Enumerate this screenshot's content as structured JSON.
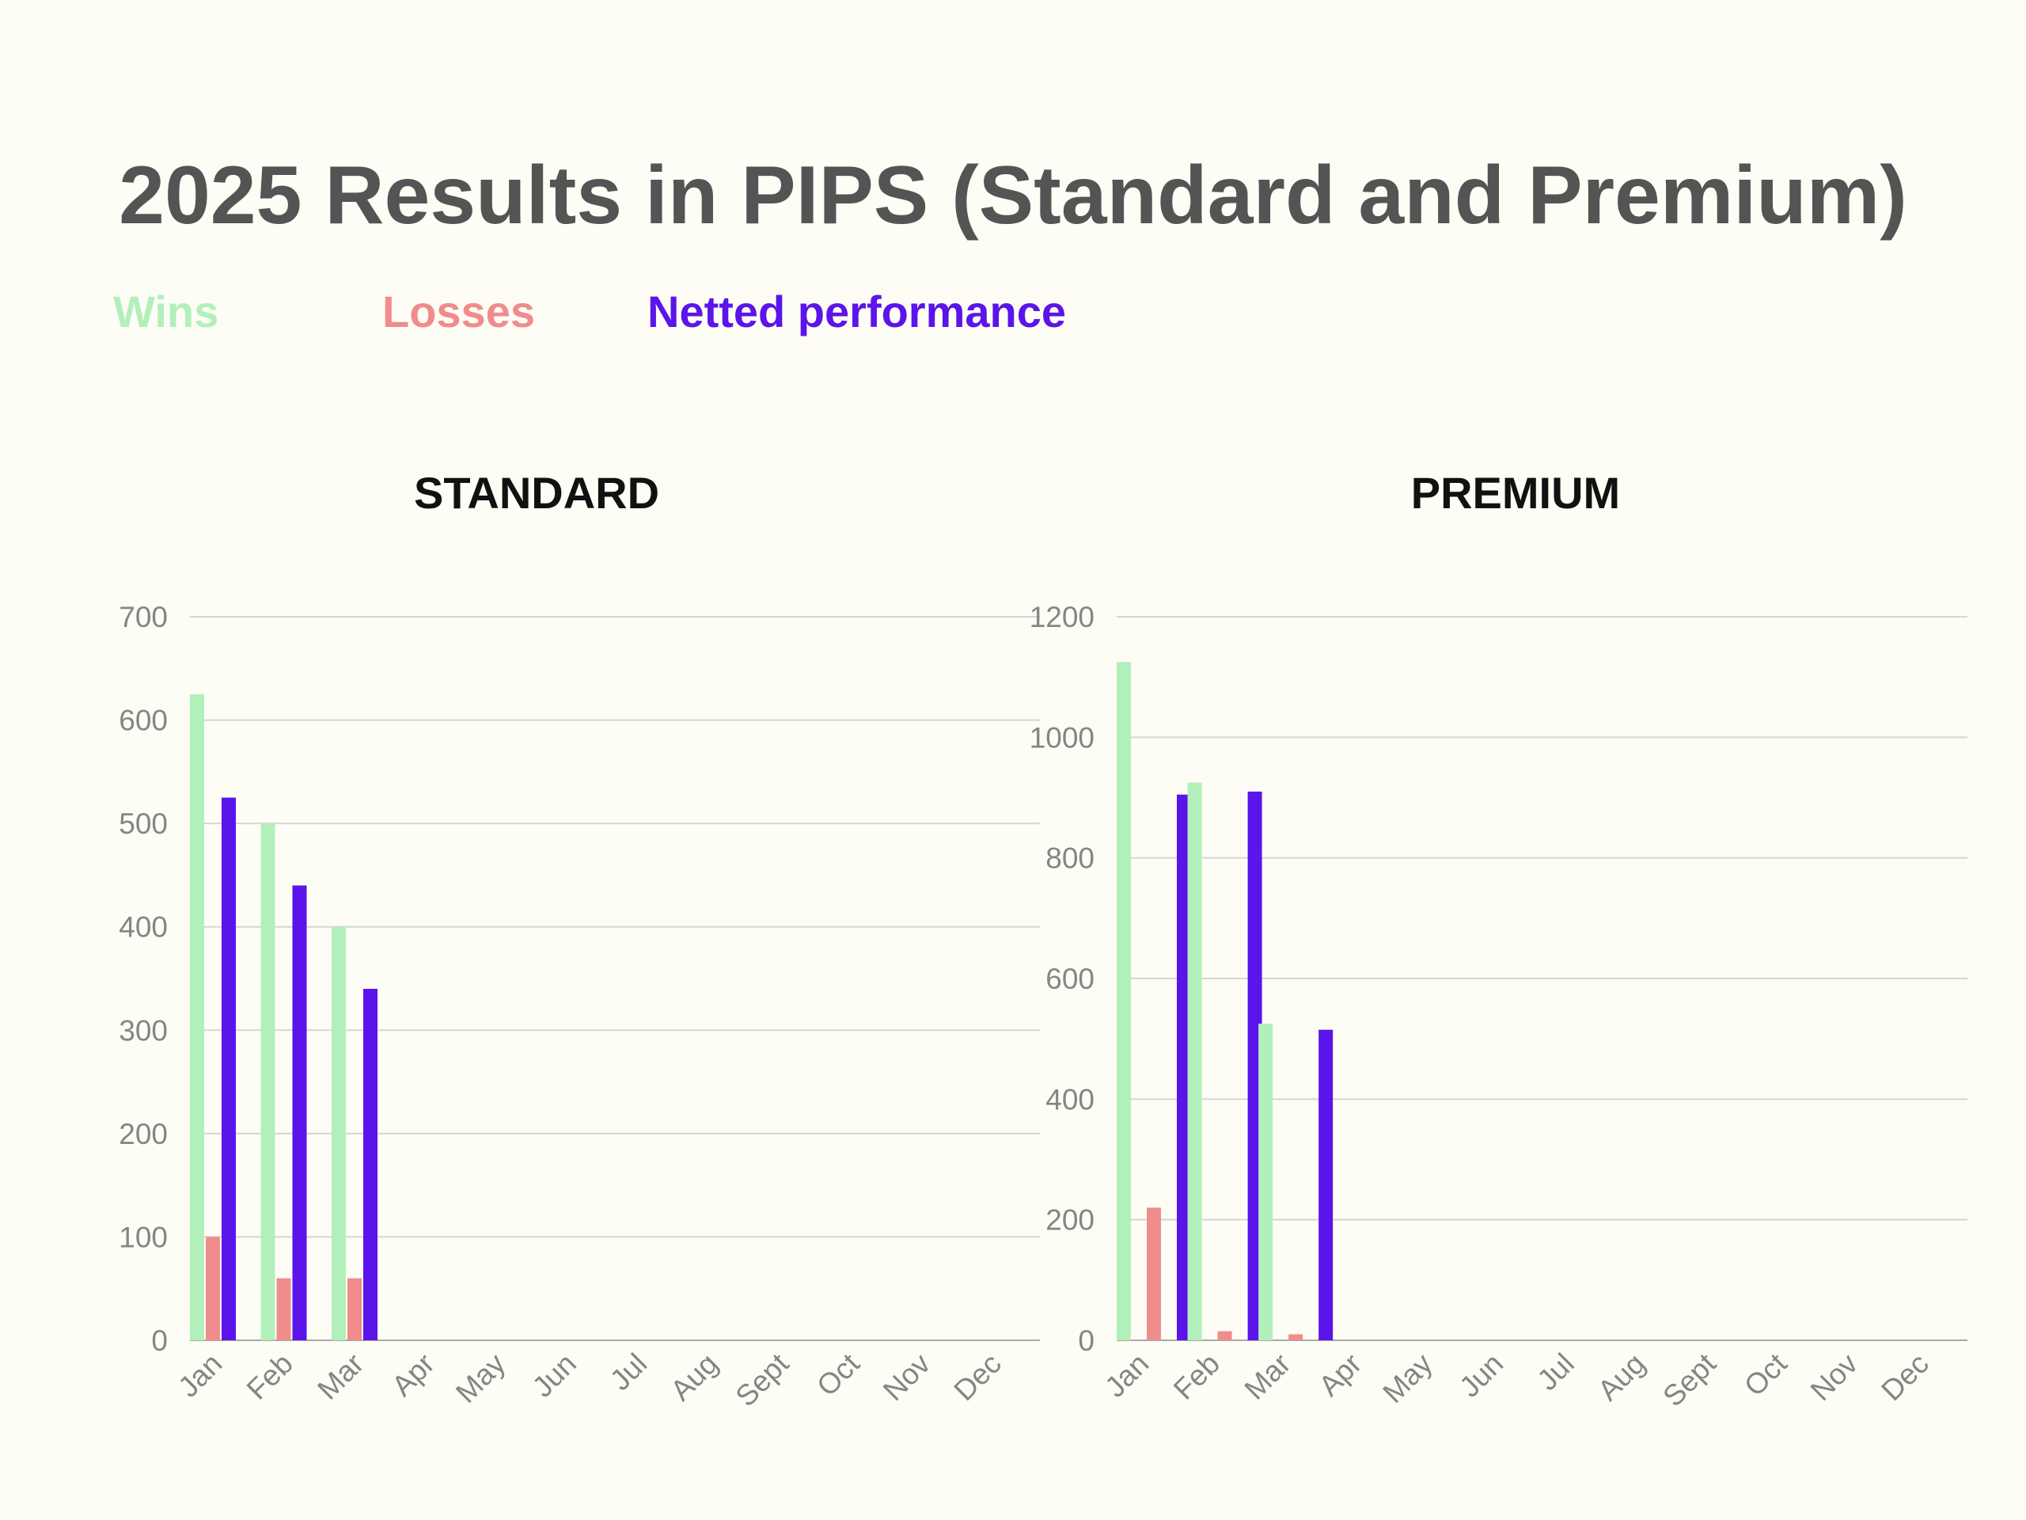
{
  "title": "2025 Results in PIPS (Standard and Premium)",
  "legend": [
    {
      "label": "Wins",
      "color": "#b2f0bb"
    },
    {
      "label": "Losses",
      "color": "#f08c8c"
    },
    {
      "label": "Netted performance",
      "color": "#5b14ea"
    }
  ],
  "chart_data": [
    {
      "type": "bar",
      "title": "STANDARD",
      "categories": [
        "Jan",
        "Feb",
        "Mar",
        "Apr",
        "May",
        "Jun",
        "Jul",
        "Aug",
        "Sept",
        "Oct",
        "Nov",
        "Dec"
      ],
      "series": [
        {
          "name": "Wins",
          "values": [
            625,
            500,
            400,
            0,
            0,
            0,
            0,
            0,
            0,
            0,
            0,
            0
          ]
        },
        {
          "name": "Losses",
          "values": [
            100,
            60,
            60,
            0,
            0,
            0,
            0,
            0,
            0,
            0,
            0,
            0
          ]
        },
        {
          "name": "Netted performance",
          "values": [
            525,
            440,
            340,
            0,
            0,
            0,
            0,
            0,
            0,
            0,
            0,
            0
          ]
        }
      ],
      "ylim": [
        0,
        700
      ],
      "yticks": [
        0,
        100,
        200,
        300,
        400,
        500,
        600,
        700
      ],
      "grid": true
    },
    {
      "type": "bar",
      "title": "PREMIUM",
      "categories": [
        "Jan",
        "Feb",
        "Mar",
        "Apr",
        "May",
        "Jun",
        "Jul",
        "Aug",
        "Sept",
        "Oct",
        "Nov",
        "Dec"
      ],
      "series": [
        {
          "name": "Wins",
          "values": [
            1125,
            925,
            525,
            0,
            0,
            0,
            0,
            0,
            0,
            0,
            0,
            0
          ]
        },
        {
          "name": "Losses",
          "values": [
            220,
            15,
            10,
            0,
            0,
            0,
            0,
            0,
            0,
            0,
            0,
            0
          ]
        },
        {
          "name": "Netted performance",
          "values": [
            905,
            910,
            515,
            0,
            0,
            0,
            0,
            0,
            0,
            0,
            0,
            0
          ]
        }
      ],
      "ylim": [
        0,
        1200
      ],
      "yticks": [
        0,
        200,
        400,
        600,
        800,
        1000,
        1200
      ],
      "grid": true
    }
  ]
}
